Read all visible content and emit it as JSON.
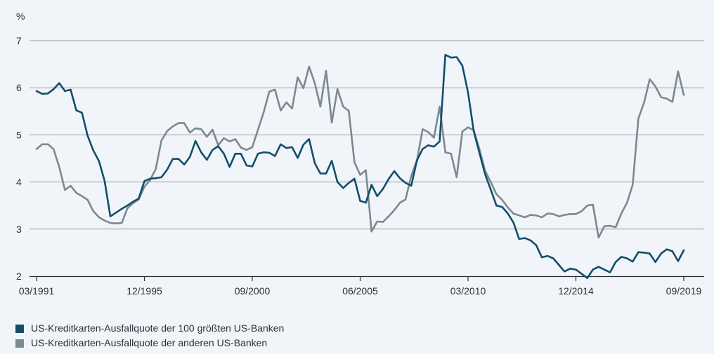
{
  "chart_data": {
    "type": "line",
    "ylabel": "%",
    "ylim": [
      2,
      7
    ],
    "y_ticks": [
      "2",
      "3",
      "4",
      "5",
      "6",
      "7"
    ],
    "x_range": [
      1991.0,
      2019.5
    ],
    "x_ticks": [
      {
        "label": "03/1991",
        "x": 1991.0
      },
      {
        "label": "12/1995",
        "x": 1995.75
      },
      {
        "label": "09/2000",
        "x": 2000.5
      },
      {
        "label": "06/2005",
        "x": 2005.25
      },
      {
        "label": "03/2010",
        "x": 2010.0
      },
      {
        "label": "12/2014",
        "x": 2014.75
      },
      {
        "label": "09/2019",
        "x": 2019.5
      }
    ],
    "grid": true,
    "legend_position": "bottom-left",
    "series": [
      {
        "name": "US-Kreditkarten-Ausfallquote der 100 größten US-Banken",
        "color": "#124e6b",
        "x": [
          1991.0,
          1991.25,
          1991.5,
          1991.75,
          1992.0,
          1992.25,
          1992.5,
          1992.75,
          1993.0,
          1993.25,
          1993.5,
          1993.75,
          1994.0,
          1994.25,
          1994.5,
          1994.75,
          1995.0,
          1995.25,
          1995.5,
          1995.75,
          1996.0,
          1996.25,
          1996.5,
          1996.75,
          1997.0,
          1997.25,
          1997.5,
          1997.75,
          1998.0,
          1998.25,
          1998.5,
          1998.75,
          1999.0,
          1999.25,
          1999.5,
          1999.75,
          2000.0,
          2000.25,
          2000.5,
          2000.75,
          2001.0,
          2001.25,
          2001.5,
          2001.75,
          2002.0,
          2002.25,
          2002.5,
          2002.75,
          2003.0,
          2003.25,
          2003.5,
          2003.75,
          2004.0,
          2004.25,
          2004.5,
          2004.75,
          2005.0,
          2005.25,
          2005.5,
          2005.75,
          2006.0,
          2006.25,
          2006.5,
          2006.75,
          2007.0,
          2007.25,
          2007.5,
          2007.75,
          2008.0,
          2008.25,
          2008.5,
          2008.75,
          2009.0,
          2009.25,
          2009.5,
          2009.75,
          2010.0,
          2010.25,
          2010.5,
          2010.75,
          2011.0,
          2011.25,
          2011.5,
          2011.75,
          2012.0,
          2012.25,
          2012.5,
          2012.75,
          2013.0,
          2013.25,
          2013.5,
          2013.75,
          2014.0,
          2014.25,
          2014.5,
          2014.75,
          2015.0,
          2015.25,
          2015.5,
          2015.75,
          2016.0,
          2016.25,
          2016.5,
          2016.75,
          2017.0,
          2017.25,
          2017.5,
          2017.75,
          2018.0,
          2018.25,
          2018.5,
          2018.75,
          2019.0,
          2019.25,
          2019.5
        ],
        "values": [
          5.93,
          5.87,
          5.88,
          5.97,
          6.1,
          5.93,
          5.96,
          5.52,
          5.47,
          4.98,
          4.67,
          4.44,
          4.02,
          3.27,
          3.35,
          3.43,
          3.5,
          3.58,
          3.65,
          4.02,
          4.07,
          4.08,
          4.1,
          4.26,
          4.49,
          4.49,
          4.37,
          4.53,
          4.87,
          4.63,
          4.47,
          4.68,
          4.76,
          4.6,
          4.32,
          4.6,
          4.6,
          4.35,
          4.33,
          4.6,
          4.63,
          4.62,
          4.55,
          4.8,
          4.72,
          4.74,
          4.51,
          4.79,
          4.91,
          4.4,
          4.18,
          4.18,
          4.45,
          4.0,
          3.87,
          3.98,
          4.07,
          3.6,
          3.56,
          3.94,
          3.7,
          3.85,
          4.06,
          4.23,
          4.08,
          3.98,
          3.92,
          4.46,
          4.7,
          4.78,
          4.75,
          4.86,
          6.7,
          6.64,
          6.65,
          6.47,
          5.9,
          5.08,
          4.62,
          4.17,
          3.84,
          3.5,
          3.47,
          3.33,
          3.14,
          2.79,
          2.81,
          2.76,
          2.66,
          2.4,
          2.43,
          2.38,
          2.24,
          2.1,
          2.16,
          2.14,
          2.05,
          1.96,
          2.14,
          2.2,
          2.14,
          2.08,
          2.3,
          2.41,
          2.38,
          2.31,
          2.51,
          2.5,
          2.48,
          2.3,
          2.48,
          2.57,
          2.53,
          2.32,
          2.55
        ]
      },
      {
        "name": "US-Kreditkarten-Ausfallquote der anderen US-Banken",
        "color": "#7b8a8e",
        "x": [
          1991.0,
          1991.25,
          1991.5,
          1991.75,
          1992.0,
          1992.25,
          1992.5,
          1992.75,
          1993.0,
          1993.25,
          1993.5,
          1993.75,
          1994.0,
          1994.25,
          1994.5,
          1994.75,
          1995.0,
          1995.25,
          1995.5,
          1995.75,
          1996.0,
          1996.25,
          1996.5,
          1996.75,
          1997.0,
          1997.25,
          1997.5,
          1997.75,
          1998.0,
          1998.25,
          1998.5,
          1998.75,
          1999.0,
          1999.25,
          1999.5,
          1999.75,
          2000.0,
          2000.25,
          2000.5,
          2000.75,
          2001.0,
          2001.25,
          2001.5,
          2001.75,
          2002.0,
          2002.25,
          2002.5,
          2002.75,
          2003.0,
          2003.25,
          2003.5,
          2003.75,
          2004.0,
          2004.25,
          2004.5,
          2004.75,
          2005.0,
          2005.25,
          2005.5,
          2005.75,
          2006.0,
          2006.25,
          2006.5,
          2006.75,
          2007.0,
          2007.25,
          2007.5,
          2007.75,
          2008.0,
          2008.25,
          2008.5,
          2008.75,
          2009.0,
          2009.25,
          2009.5,
          2009.75,
          2010.0,
          2010.25,
          2010.5,
          2010.75,
          2011.0,
          2011.25,
          2011.5,
          2011.75,
          2012.0,
          2012.25,
          2012.5,
          2012.75,
          2013.0,
          2013.25,
          2013.5,
          2013.75,
          2014.0,
          2014.25,
          2014.5,
          2014.75,
          2015.0,
          2015.25,
          2015.5,
          2015.75,
          2016.0,
          2016.25,
          2016.5,
          2016.75,
          2017.0,
          2017.25,
          2017.5,
          2017.75,
          2018.0,
          2018.25,
          2018.5,
          2018.75,
          2019.0,
          2019.25,
          2019.5
        ],
        "values": [
          4.7,
          4.8,
          4.8,
          4.7,
          4.32,
          3.83,
          3.92,
          3.77,
          3.7,
          3.62,
          3.38,
          3.25,
          3.18,
          3.13,
          3.12,
          3.13,
          3.44,
          3.55,
          3.63,
          3.9,
          4.04,
          4.28,
          4.88,
          5.08,
          5.18,
          5.25,
          5.25,
          5.05,
          5.14,
          5.12,
          4.96,
          5.11,
          4.78,
          4.93,
          4.86,
          4.91,
          4.73,
          4.68,
          4.74,
          5.11,
          5.48,
          5.92,
          5.96,
          5.52,
          5.69,
          5.56,
          6.22,
          5.99,
          6.45,
          6.1,
          5.6,
          6.36,
          5.26,
          5.97,
          5.6,
          5.51,
          4.42,
          4.15,
          4.25,
          2.95,
          3.16,
          3.15,
          3.27,
          3.4,
          3.56,
          3.63,
          4.13,
          4.46,
          5.12,
          5.06,
          4.94,
          5.6,
          4.63,
          4.6,
          4.1,
          5.07,
          5.16,
          5.1,
          4.7,
          4.24,
          4.0,
          3.74,
          3.62,
          3.46,
          3.33,
          3.29,
          3.25,
          3.3,
          3.29,
          3.25,
          3.33,
          3.32,
          3.27,
          3.3,
          3.32,
          3.32,
          3.38,
          3.5,
          3.52,
          2.82,
          3.06,
          3.07,
          3.04,
          3.33,
          3.56,
          3.94,
          5.35,
          5.68,
          6.18,
          6.03,
          5.8,
          5.77,
          5.7,
          6.35,
          5.85
        ]
      }
    ]
  }
}
